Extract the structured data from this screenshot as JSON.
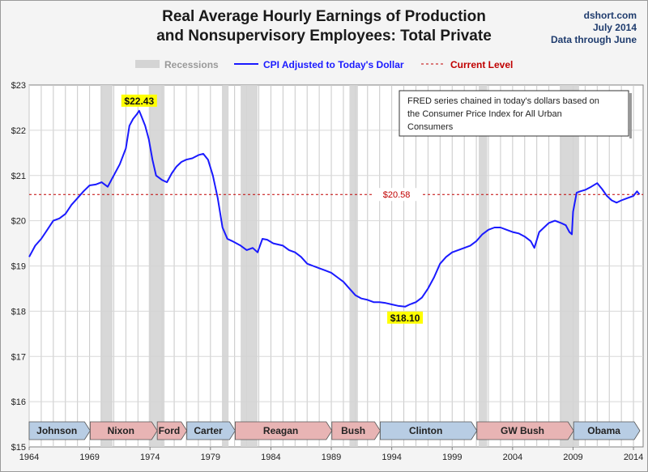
{
  "header": {
    "title_line1": "Real Average Hourly Earnings of Production",
    "title_line2": "and Nonsupervisory Employees: Total Private",
    "source": "dshort.com",
    "date": "July 2014",
    "data_through": "Data through June"
  },
  "legend": {
    "recessions": "Recessions",
    "series": "CPI Adjusted to Today's Dollar",
    "current": "Current Level"
  },
  "note": {
    "line1": "FRED series chained in today's dollars based on",
    "line2": "the Consumer Price Index for All Urban",
    "line3": "Consumers"
  },
  "colors": {
    "series": "#1a1aff",
    "current": "#c00000",
    "recession": "#d4d4d4",
    "callout": "#ffff00",
    "dem": "#b8cde4",
    "rep": "#e8b4b4"
  },
  "chart_data": {
    "type": "line",
    "title": "Real Average Hourly Earnings of Production and Nonsupervisory Employees: Total Private",
    "xlim": [
      1964,
      2014.8
    ],
    "ylim": [
      15,
      23
    ],
    "x_ticks": [
      "1964",
      "1969",
      "1974",
      "1979",
      "1984",
      "1989",
      "1994",
      "1999",
      "2004",
      "2009",
      "2014"
    ],
    "y_ticks": [
      "$15",
      "$16",
      "$17",
      "$18",
      "$19",
      "$20",
      "$21",
      "$22",
      "$23"
    ],
    "current_level": 20.58,
    "current_label": "$20.58",
    "annotations": [
      {
        "label": "$22.43",
        "x": 1973.1,
        "y": 22.43
      },
      {
        "label": "$18.10",
        "x": 1995.1,
        "y": 18.1
      }
    ],
    "recessions": [
      [
        1969.9,
        1970.9
      ],
      [
        1973.9,
        1975.2
      ],
      [
        1980.0,
        1980.5
      ],
      [
        1981.5,
        1982.9
      ],
      [
        1990.5,
        1991.2
      ],
      [
        2001.2,
        2001.9
      ],
      [
        2007.9,
        2009.5
      ]
    ],
    "presidents": [
      {
        "name": "Johnson",
        "start": 1964.0,
        "end": 1969.05,
        "party": "D"
      },
      {
        "name": "Nixon",
        "start": 1969.05,
        "end": 1974.6,
        "party": "R"
      },
      {
        "name": "Ford",
        "start": 1974.6,
        "end": 1977.05,
        "party": "R"
      },
      {
        "name": "Carter",
        "start": 1977.05,
        "end": 1981.05,
        "party": "D"
      },
      {
        "name": "Reagan",
        "start": 1981.05,
        "end": 1989.05,
        "party": "R"
      },
      {
        "name": "Bush",
        "start": 1989.05,
        "end": 1993.05,
        "party": "R"
      },
      {
        "name": "Clinton",
        "start": 1993.05,
        "end": 2001.05,
        "party": "D"
      },
      {
        "name": "GW Bush",
        "start": 2001.05,
        "end": 2009.05,
        "party": "R"
      },
      {
        "name": "Obama",
        "start": 2009.05,
        "end": 2014.8,
        "party": "D"
      }
    ],
    "series": [
      {
        "name": "CPI Adjusted to Today's Dollar",
        "x": [
          1964.0,
          1964.5,
          1965.0,
          1965.5,
          1966.0,
          1966.5,
          1967.0,
          1967.5,
          1968.0,
          1968.5,
          1969.0,
          1969.5,
          1970.0,
          1970.5,
          1971.0,
          1971.5,
          1972.0,
          1972.3,
          1972.6,
          1972.9,
          1973.1,
          1973.3,
          1973.6,
          1973.9,
          1974.2,
          1974.5,
          1975.0,
          1975.4,
          1975.8,
          1976.2,
          1976.6,
          1977.0,
          1977.5,
          1978.0,
          1978.4,
          1978.8,
          1979.2,
          1979.6,
          1980.0,
          1980.4,
          1980.8,
          1981.5,
          1982.0,
          1982.5,
          1982.9,
          1983.3,
          1983.7,
          1984.2,
          1985.0,
          1985.5,
          1986.0,
          1986.5,
          1987.0,
          1987.5,
          1988.0,
          1988.5,
          1989.0,
          1989.5,
          1990.0,
          1990.5,
          1991.0,
          1991.5,
          1992.0,
          1992.5,
          1993.0,
          1993.5,
          1994.0,
          1994.5,
          1995.1,
          1995.5,
          1996.0,
          1996.5,
          1997.0,
          1997.5,
          1998.0,
          1998.5,
          1999.0,
          1999.5,
          2000.0,
          2000.5,
          2001.0,
          2001.5,
          2002.0,
          2002.5,
          2003.0,
          2003.5,
          2004.0,
          2004.5,
          2005.0,
          2005.5,
          2005.8,
          2006.2,
          2006.6,
          2007.0,
          2007.5,
          2008.0,
          2008.4,
          2008.7,
          2008.9,
          2009.0,
          2009.3,
          2009.6,
          2010.0,
          2010.5,
          2011.0,
          2011.4,
          2011.8,
          2012.2,
          2012.6,
          2013.0,
          2013.5,
          2014.0,
          2014.3,
          2014.5
        ],
        "values": [
          19.2,
          19.45,
          19.6,
          19.8,
          20.0,
          20.05,
          20.15,
          20.35,
          20.5,
          20.65,
          20.78,
          20.8,
          20.85,
          20.75,
          21.0,
          21.25,
          21.6,
          22.1,
          22.25,
          22.35,
          22.43,
          22.3,
          22.1,
          21.8,
          21.35,
          21.0,
          20.9,
          20.85,
          21.05,
          21.2,
          21.3,
          21.35,
          21.38,
          21.45,
          21.48,
          21.35,
          21.0,
          20.5,
          19.85,
          19.6,
          19.55,
          19.45,
          19.35,
          19.4,
          19.3,
          19.6,
          19.58,
          19.5,
          19.45,
          19.35,
          19.3,
          19.2,
          19.05,
          19.0,
          18.95,
          18.9,
          18.85,
          18.75,
          18.65,
          18.5,
          18.35,
          18.28,
          18.25,
          18.2,
          18.2,
          18.18,
          18.15,
          18.12,
          18.1,
          18.15,
          18.2,
          18.3,
          18.5,
          18.75,
          19.05,
          19.2,
          19.3,
          19.35,
          19.4,
          19.45,
          19.55,
          19.7,
          19.8,
          19.85,
          19.85,
          19.8,
          19.75,
          19.72,
          19.65,
          19.55,
          19.4,
          19.75,
          19.85,
          19.95,
          20.0,
          19.95,
          19.9,
          19.75,
          19.7,
          20.2,
          20.62,
          20.65,
          20.68,
          20.75,
          20.83,
          20.7,
          20.55,
          20.45,
          20.4,
          20.45,
          20.5,
          20.55,
          20.65,
          20.58
        ]
      }
    ]
  }
}
